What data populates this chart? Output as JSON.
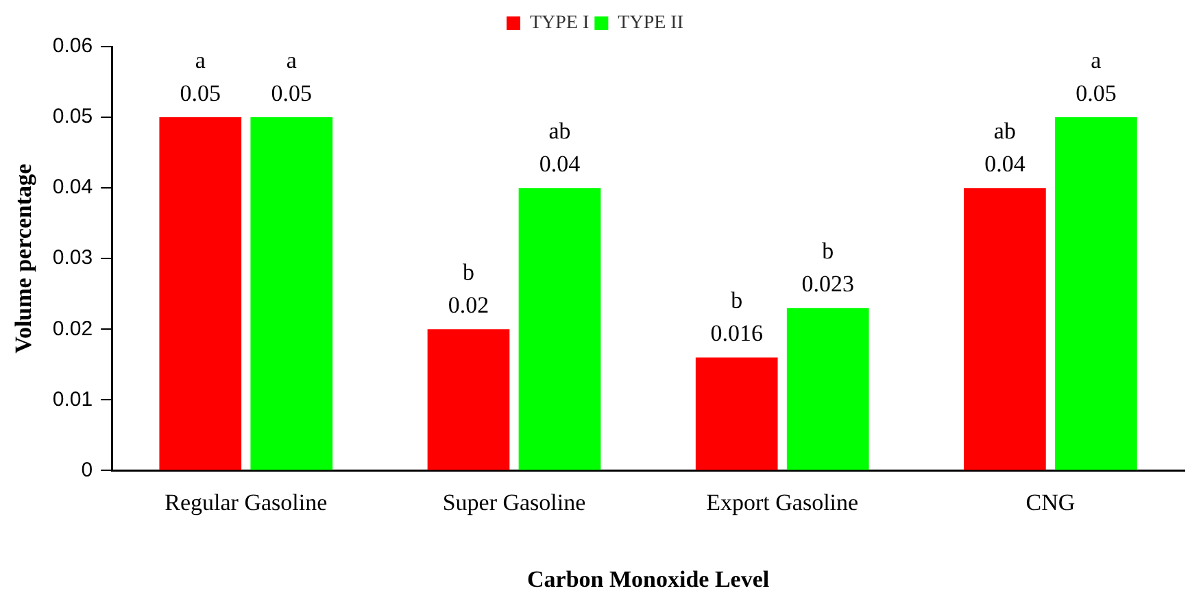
{
  "chart_data": {
    "type": "bar",
    "xlabel": "Carbon Monoxide Level",
    "ylabel": "Volume percentage",
    "categories": [
      "Regular Gasoline",
      "Super Gasoline",
      "Export Gasoline",
      "CNG"
    ],
    "series": [
      {
        "name": "TYPE I",
        "color": "#ff0000",
        "values": [
          0.05,
          0.02,
          0.016,
          0.04
        ],
        "value_labels": [
          "a\n0.05",
          "b\n0.02",
          "b\n0.016",
          "ab\n0.04"
        ]
      },
      {
        "name": "TYPE II",
        "color": "#00ff00",
        "values": [
          0.05,
          0.04,
          0.023,
          0.05
        ],
        "value_labels": [
          "a\n0.05",
          "ab\n0.04",
          "b\n0.023",
          "a\n0.05"
        ]
      }
    ],
    "ylim": [
      0,
      0.06
    ],
    "yticks": [
      0,
      0.01,
      0.02,
      0.03,
      0.04,
      0.05,
      0.06
    ],
    "grid": false,
    "legend": "top"
  }
}
